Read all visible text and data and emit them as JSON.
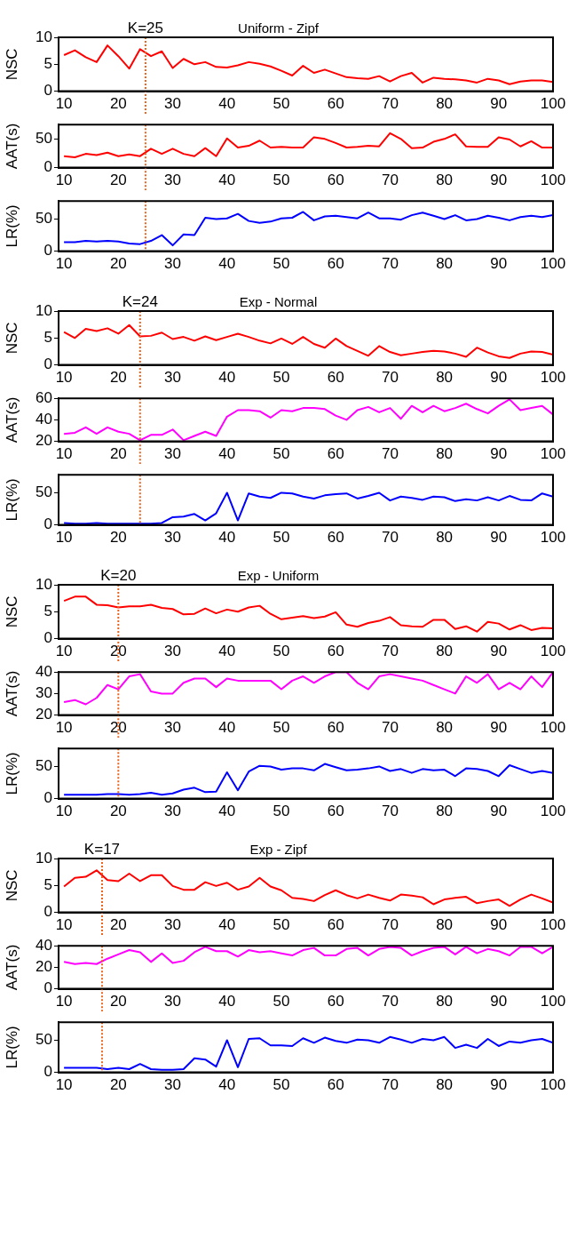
{
  "chart_data": [
    {
      "type": "line",
      "title": "Uniform - Zipf",
      "ylabel": "NSC",
      "marker": "none",
      "legend": false,
      "xlim": [
        9,
        100
      ],
      "xticks": [
        10,
        20,
        30,
        40,
        50,
        60,
        70,
        80,
        90,
        100
      ],
      "ylim": [
        0,
        10
      ],
      "yticks": [
        0,
        5,
        10
      ],
      "x": [
        10,
        12,
        14,
        16,
        18,
        20,
        22,
        24,
        26,
        28,
        30,
        32,
        34,
        36,
        38,
        40,
        42,
        44,
        46,
        48,
        50,
        52,
        54,
        56,
        58,
        60,
        62,
        64,
        66,
        68,
        70,
        72,
        74,
        76,
        78,
        80,
        82,
        84,
        86,
        88,
        90,
        92,
        94,
        96,
        98,
        100
      ],
      "series": [
        {
          "color": "#ff0000",
          "values": [
            6.7,
            7.6,
            6.3,
            5.4,
            8.5,
            6.5,
            4.2,
            7.8,
            6.5,
            7.4,
            4.3,
            6.0,
            5.0,
            5.4,
            4.5,
            4.4,
            4.8,
            5.4,
            5.1,
            4.6,
            3.8,
            2.9,
            4.7,
            3.4,
            4.0,
            3.3,
            2.6,
            2.4,
            2.3,
            2.8,
            1.8,
            2.8,
            3.4,
            1.6,
            2.5,
            2.3,
            2.2,
            2.0,
            1.6,
            2.3,
            2.0,
            1.3,
            1.8,
            2.0,
            2.0,
            1.7
          ]
        }
      ],
      "ref_lines": [
        {
          "axis": "x",
          "value": 25,
          "label": "K=25",
          "color": "#e8641e",
          "line_style": "dotted"
        }
      ]
    },
    {
      "type": "line",
      "ylabel": "AAT(s)",
      "marker": "none",
      "legend": false,
      "xlim": [
        9,
        100
      ],
      "xticks": [
        10,
        20,
        30,
        40,
        50,
        60,
        70,
        80,
        90,
        100
      ],
      "ylim": [
        0,
        75
      ],
      "yticks": [
        0,
        50
      ],
      "x": [
        10,
        12,
        14,
        16,
        18,
        20,
        22,
        24,
        26,
        28,
        30,
        32,
        34,
        36,
        38,
        40,
        42,
        44,
        46,
        48,
        50,
        52,
        54,
        56,
        58,
        60,
        62,
        64,
        66,
        68,
        70,
        72,
        74,
        76,
        78,
        80,
        82,
        84,
        86,
        88,
        90,
        92,
        94,
        96,
        98,
        100
      ],
      "series": [
        {
          "color": "#ff0000",
          "values": [
            20,
            18,
            24,
            22,
            26,
            20,
            23,
            20,
            33,
            24,
            33,
            24,
            20,
            34,
            20,
            51,
            35,
            38,
            47,
            35,
            36,
            35,
            35,
            53,
            50,
            43,
            35,
            36,
            38,
            37,
            60,
            50,
            34,
            35,
            45,
            50,
            58,
            37,
            36,
            36,
            53,
            49,
            37,
            46,
            35,
            35
          ]
        }
      ],
      "ref_lines": [
        {
          "axis": "x",
          "value": 25,
          "color": "#e8641e",
          "line_style": "dotted"
        }
      ]
    },
    {
      "type": "line",
      "ylabel": "LR(%)",
      "marker": "none",
      "legend": false,
      "xlim": [
        9,
        100
      ],
      "xticks": [
        10,
        20,
        30,
        40,
        50,
        60,
        70,
        80,
        90,
        100
      ],
      "ylim": [
        0,
        78
      ],
      "yticks": [
        0,
        50
      ],
      "x": [
        10,
        12,
        14,
        16,
        18,
        20,
        22,
        24,
        26,
        28,
        30,
        32,
        34,
        36,
        38,
        40,
        42,
        44,
        46,
        48,
        50,
        52,
        54,
        56,
        58,
        60,
        62,
        64,
        66,
        68,
        70,
        72,
        74,
        76,
        78,
        80,
        82,
        84,
        86,
        88,
        90,
        92,
        94,
        96,
        98,
        100
      ],
      "series": [
        {
          "color": "#0000ff",
          "values": [
            14,
            14,
            16,
            15,
            16,
            15,
            12,
            11,
            16,
            25,
            9,
            26,
            25,
            52,
            50,
            51,
            58,
            47,
            44,
            46,
            51,
            52,
            61,
            48,
            54,
            55,
            53,
            51,
            60,
            51,
            51,
            49,
            56,
            60,
            55,
            50,
            56,
            48,
            50,
            55,
            52,
            48,
            53,
            55,
            53,
            56
          ]
        }
      ],
      "ref_lines": [
        {
          "axis": "x",
          "value": 25,
          "color": "#e8641e",
          "line_style": "dotted"
        }
      ]
    },
    {
      "type": "line",
      "title": "Exp - Normal",
      "ylabel": "NSC",
      "marker": "none",
      "legend": false,
      "xlim": [
        9,
        100
      ],
      "xticks": [
        10,
        20,
        30,
        40,
        50,
        60,
        70,
        80,
        90,
        100
      ],
      "ylim": [
        0,
        10
      ],
      "yticks": [
        0,
        5,
        10
      ],
      "x": [
        10,
        12,
        14,
        16,
        18,
        20,
        22,
        24,
        26,
        28,
        30,
        32,
        34,
        36,
        38,
        40,
        42,
        44,
        46,
        48,
        50,
        52,
        54,
        56,
        58,
        60,
        62,
        64,
        66,
        68,
        70,
        72,
        74,
        76,
        78,
        80,
        82,
        84,
        86,
        88,
        90,
        92,
        94,
        96,
        98,
        100
      ],
      "series": [
        {
          "color": "#ff0000",
          "values": [
            6.1,
            5.0,
            6.7,
            6.3,
            6.8,
            5.8,
            7.4,
            5.3,
            5.4,
            6.0,
            4.8,
            5.2,
            4.5,
            5.3,
            4.6,
            5.2,
            5.8,
            5.2,
            4.5,
            4.0,
            4.9,
            3.9,
            5.2,
            3.9,
            3.2,
            4.9,
            3.5,
            2.6,
            1.7,
            3.5,
            2.4,
            1.8,
            2.1,
            2.4,
            2.6,
            2.5,
            2.1,
            1.5,
            3.2,
            2.3,
            1.6,
            1.3,
            2.1,
            2.5,
            2.4,
            1.9
          ]
        }
      ],
      "ref_lines": [
        {
          "axis": "x",
          "value": 24,
          "label": "K=24",
          "color": "#e8641e",
          "line_style": "dotted"
        }
      ]
    },
    {
      "type": "line",
      "ylabel": "AAT(s)",
      "marker": "none",
      "legend": false,
      "xlim": [
        9,
        100
      ],
      "xticks": [
        10,
        20,
        30,
        40,
        50,
        60,
        70,
        80,
        90,
        100
      ],
      "ylim": [
        20,
        60
      ],
      "yticks": [
        20,
        40,
        60
      ],
      "x": [
        10,
        12,
        14,
        16,
        18,
        20,
        22,
        24,
        26,
        28,
        30,
        32,
        34,
        36,
        38,
        40,
        42,
        44,
        46,
        48,
        50,
        52,
        54,
        56,
        58,
        60,
        62,
        64,
        66,
        68,
        70,
        72,
        74,
        76,
        78,
        80,
        82,
        84,
        86,
        88,
        90,
        92,
        94,
        96,
        98,
        100
      ],
      "series": [
        {
          "color": "#ff00ff",
          "values": [
            27,
            28,
            33,
            27,
            33,
            29,
            27,
            21,
            26,
            26,
            31,
            21,
            25,
            29,
            25,
            43,
            49,
            49,
            48,
            42,
            49,
            48,
            51,
            51,
            50,
            44,
            40,
            49,
            52,
            47,
            51,
            41,
            53,
            47,
            53,
            48,
            51,
            55,
            50,
            46,
            53,
            59,
            49,
            51,
            53,
            45
          ]
        }
      ],
      "ref_lines": [
        {
          "axis": "x",
          "value": 24,
          "color": "#e8641e",
          "line_style": "dotted"
        }
      ]
    },
    {
      "type": "line",
      "ylabel": "LR(%)",
      "marker": "none",
      "legend": false,
      "xlim": [
        9,
        100
      ],
      "xticks": [
        10,
        20,
        30,
        40,
        50,
        60,
        70,
        80,
        90,
        100
      ],
      "ylim": [
        0,
        78
      ],
      "yticks": [
        0,
        50
      ],
      "x": [
        10,
        12,
        14,
        16,
        18,
        20,
        22,
        24,
        26,
        28,
        30,
        32,
        34,
        36,
        38,
        40,
        42,
        44,
        46,
        48,
        50,
        52,
        54,
        56,
        58,
        60,
        62,
        64,
        66,
        68,
        70,
        72,
        74,
        76,
        78,
        80,
        82,
        84,
        86,
        88,
        90,
        92,
        94,
        96,
        98,
        100
      ],
      "series": [
        {
          "color": "#0000ff",
          "values": [
            3,
            2,
            2,
            3,
            2,
            2,
            2,
            2,
            2,
            3,
            12,
            13,
            17,
            7,
            18,
            50,
            7,
            49,
            44,
            42,
            50,
            49,
            44,
            41,
            46,
            48,
            49,
            41,
            45,
            50,
            38,
            44,
            42,
            39,
            44,
            43,
            37,
            40,
            38,
            43,
            38,
            45,
            39,
            38,
            49,
            44
          ]
        }
      ],
      "ref_lines": [
        {
          "axis": "x",
          "value": 24,
          "color": "#e8641e",
          "line_style": "dotted"
        }
      ]
    },
    {
      "type": "line",
      "title": "Exp - Uniform",
      "ylabel": "NSC",
      "marker": "none",
      "legend": false,
      "xlim": [
        9,
        100
      ],
      "xticks": [
        10,
        20,
        30,
        40,
        50,
        60,
        70,
        80,
        90,
        100
      ],
      "ylim": [
        0,
        10
      ],
      "yticks": [
        0,
        5,
        10
      ],
      "x": [
        10,
        12,
        14,
        16,
        18,
        20,
        22,
        24,
        26,
        28,
        30,
        32,
        34,
        36,
        38,
        40,
        42,
        44,
        46,
        48,
        50,
        52,
        54,
        56,
        58,
        60,
        62,
        64,
        66,
        68,
        70,
        72,
        74,
        76,
        78,
        80,
        82,
        84,
        86,
        88,
        90,
        92,
        94,
        96,
        98,
        100
      ],
      "series": [
        {
          "color": "#ff0000",
          "values": [
            7.0,
            7.8,
            7.8,
            6.3,
            6.2,
            5.8,
            6.0,
            6.0,
            6.3,
            5.7,
            5.5,
            4.5,
            4.6,
            5.6,
            4.7,
            5.4,
            5.0,
            5.8,
            6.1,
            4.6,
            3.6,
            3.9,
            4.2,
            3.8,
            4.1,
            4.9,
            2.6,
            2.2,
            2.9,
            3.3,
            4.0,
            2.5,
            2.3,
            2.2,
            3.5,
            3.5,
            1.8,
            2.3,
            1.3,
            3.1,
            2.8,
            1.7,
            2.5,
            1.6,
            2.0,
            1.9
          ]
        }
      ],
      "ref_lines": [
        {
          "axis": "x",
          "value": 20,
          "label": "K=20",
          "color": "#e8641e",
          "line_style": "dotted"
        }
      ]
    },
    {
      "type": "line",
      "ylabel": "AAT(s)",
      "marker": "none",
      "legend": false,
      "xlim": [
        9,
        100
      ],
      "xticks": [
        10,
        20,
        30,
        40,
        50,
        60,
        70,
        80,
        90,
        100
      ],
      "ylim": [
        20,
        40
      ],
      "yticks": [
        20,
        30,
        40
      ],
      "x": [
        10,
        12,
        14,
        16,
        18,
        20,
        22,
        24,
        26,
        28,
        30,
        32,
        34,
        36,
        38,
        40,
        42,
        44,
        46,
        48,
        50,
        52,
        54,
        56,
        58,
        60,
        62,
        64,
        66,
        68,
        70,
        72,
        74,
        76,
        78,
        80,
        82,
        84,
        86,
        88,
        90,
        92,
        94,
        96,
        98,
        100
      ],
      "series": [
        {
          "color": "#ff00ff",
          "values": [
            26,
            27,
            25,
            28,
            34,
            32,
            38,
            39,
            31,
            30,
            30,
            35,
            37,
            37,
            33,
            37,
            36,
            36,
            36,
            36,
            32,
            36,
            38,
            35,
            38,
            40,
            40,
            35,
            32,
            38,
            39,
            38,
            37,
            36,
            34,
            32,
            30,
            38,
            35,
            39,
            32,
            35,
            32,
            38,
            33,
            40
          ]
        }
      ],
      "ref_lines": [
        {
          "axis": "x",
          "value": 20,
          "color": "#e8641e",
          "line_style": "dotted"
        }
      ]
    },
    {
      "type": "line",
      "ylabel": "LR(%)",
      "marker": "none",
      "legend": false,
      "xlim": [
        9,
        100
      ],
      "xticks": [
        10,
        20,
        30,
        40,
        50,
        60,
        70,
        80,
        90,
        100
      ],
      "ylim": [
        0,
        78
      ],
      "yticks": [
        0,
        50
      ],
      "x": [
        10,
        12,
        14,
        16,
        18,
        20,
        22,
        24,
        26,
        28,
        30,
        32,
        34,
        36,
        38,
        40,
        42,
        44,
        46,
        48,
        50,
        52,
        54,
        56,
        58,
        60,
        62,
        64,
        66,
        68,
        70,
        72,
        74,
        76,
        78,
        80,
        82,
        84,
        86,
        88,
        90,
        92,
        94,
        96,
        98,
        100
      ],
      "series": [
        {
          "color": "#0000ff",
          "values": [
            6,
            6,
            6,
            6,
            7,
            7,
            6,
            7,
            9,
            6,
            8,
            14,
            17,
            10,
            11,
            41,
            13,
            42,
            51,
            50,
            45,
            47,
            47,
            44,
            54,
            49,
            44,
            45,
            47,
            50,
            43,
            46,
            40,
            46,
            44,
            45,
            35,
            47,
            46,
            43,
            35,
            52,
            46,
            40,
            43,
            40
          ]
        }
      ],
      "ref_lines": [
        {
          "axis": "x",
          "value": 20,
          "color": "#e8641e",
          "line_style": "dotted"
        }
      ]
    },
    {
      "type": "line",
      "title": "Exp - Zipf",
      "ylabel": "NSC",
      "marker": "none",
      "legend": false,
      "xlim": [
        9,
        100
      ],
      "xticks": [
        10,
        20,
        30,
        40,
        50,
        60,
        70,
        80,
        90,
        100
      ],
      "ylim": [
        0,
        10
      ],
      "yticks": [
        0,
        5,
        10
      ],
      "x": [
        10,
        12,
        14,
        16,
        18,
        20,
        22,
        24,
        26,
        28,
        30,
        32,
        34,
        36,
        38,
        40,
        42,
        44,
        46,
        48,
        50,
        52,
        54,
        56,
        58,
        60,
        62,
        64,
        66,
        68,
        70,
        72,
        74,
        76,
        78,
        80,
        82,
        84,
        86,
        88,
        90,
        92,
        94,
        96,
        98,
        100
      ],
      "series": [
        {
          "color": "#ff0000",
          "values": [
            4.8,
            6.4,
            6.6,
            7.8,
            6.0,
            5.8,
            7.2,
            5.8,
            6.9,
            6.9,
            4.9,
            4.2,
            4.2,
            5.6,
            4.9,
            5.5,
            4.2,
            4.8,
            6.4,
            4.8,
            4.1,
            2.7,
            2.5,
            2.1,
            3.2,
            4.1,
            3.2,
            2.6,
            3.3,
            2.7,
            2.2,
            3.3,
            3.1,
            2.8,
            1.5,
            2.4,
            2.7,
            2.9,
            1.7,
            2.1,
            2.4,
            1.2,
            2.4,
            3.3,
            2.6,
            1.8
          ]
        }
      ],
      "ref_lines": [
        {
          "axis": "x",
          "value": 17,
          "label": "K=17",
          "color": "#e8641e",
          "line_style": "dotted"
        }
      ]
    },
    {
      "type": "line",
      "ylabel": "AAT(s)",
      "marker": "none",
      "legend": false,
      "xlim": [
        9,
        100
      ],
      "xticks": [
        10,
        20,
        30,
        40,
        50,
        60,
        70,
        80,
        90,
        100
      ],
      "ylim": [
        0,
        40
      ],
      "yticks": [
        0,
        20,
        40
      ],
      "x": [
        10,
        12,
        14,
        16,
        18,
        20,
        22,
        24,
        26,
        28,
        30,
        32,
        34,
        36,
        38,
        40,
        42,
        44,
        46,
        48,
        50,
        52,
        54,
        56,
        58,
        60,
        62,
        64,
        66,
        68,
        70,
        72,
        74,
        76,
        78,
        80,
        82,
        84,
        86,
        88,
        90,
        92,
        94,
        96,
        98,
        100
      ],
      "series": [
        {
          "color": "#ff00ff",
          "values": [
            25,
            23,
            24,
            23,
            28,
            32,
            36,
            34,
            25,
            33,
            24,
            26,
            34,
            39,
            35,
            35,
            30,
            36,
            34,
            35,
            33,
            31,
            36,
            38,
            31,
            31,
            37,
            38,
            31,
            37,
            39,
            38,
            31,
            35,
            38,
            39,
            32,
            39,
            33,
            37,
            35,
            31,
            39,
            39,
            33,
            39
          ]
        }
      ],
      "ref_lines": [
        {
          "axis": "x",
          "value": 17,
          "color": "#e8641e",
          "line_style": "dotted"
        }
      ]
    },
    {
      "type": "line",
      "ylabel": "LR(%)",
      "marker": "none",
      "legend": false,
      "xlim": [
        9,
        100
      ],
      "xticks": [
        10,
        20,
        30,
        40,
        50,
        60,
        70,
        80,
        90,
        100
      ],
      "ylim": [
        0,
        78
      ],
      "yticks": [
        0,
        50
      ],
      "x": [
        10,
        12,
        14,
        16,
        18,
        20,
        22,
        24,
        26,
        28,
        30,
        32,
        34,
        36,
        38,
        40,
        42,
        44,
        46,
        48,
        50,
        52,
        54,
        56,
        58,
        60,
        62,
        64,
        66,
        68,
        70,
        72,
        74,
        76,
        78,
        80,
        82,
        84,
        86,
        88,
        90,
        92,
        94,
        96,
        98,
        100
      ],
      "series": [
        {
          "color": "#0000ff",
          "values": [
            7,
            7,
            7,
            7,
            5,
            7,
            5,
            13,
            5,
            4,
            4,
            5,
            22,
            20,
            9,
            50,
            8,
            52,
            53,
            42,
            42,
            41,
            53,
            46,
            54,
            49,
            46,
            51,
            50,
            46,
            55,
            51,
            46,
            52,
            50,
            55,
            38,
            43,
            38,
            52,
            41,
            48,
            46,
            50,
            52,
            46
          ]
        }
      ],
      "ref_lines": [
        {
          "axis": "x",
          "value": 17,
          "color": "#e8641e",
          "line_style": "dotted"
        }
      ]
    }
  ]
}
